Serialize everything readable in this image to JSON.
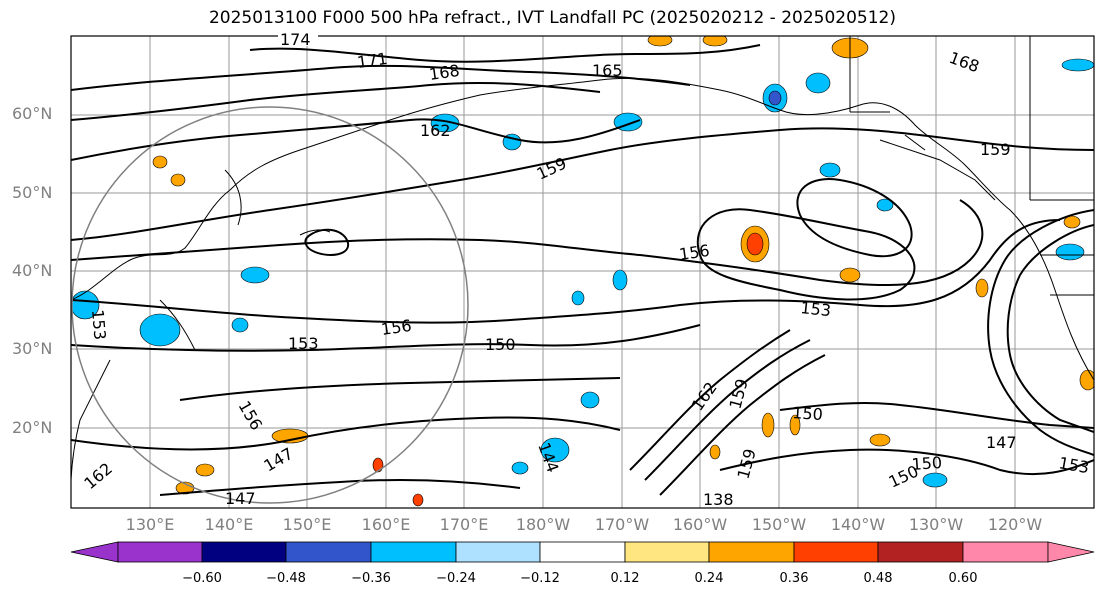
{
  "title": "2025013100 F000 500 hPa refract., IVT Landfall PC (2025020212 - 2025020512)",
  "map": {
    "lat_labels": [
      "60°N",
      "50°N",
      "40°N",
      "30°N",
      "20°N"
    ],
    "lon_labels": [
      "130°E",
      "140°E",
      "150°E",
      "160°E",
      "170°E",
      "180°W",
      "170°W",
      "160°W",
      "150°W",
      "140°W",
      "130°W",
      "120°W"
    ],
    "contour_labels": [
      "174",
      "171",
      "168",
      "165",
      "162",
      "159",
      "156",
      "153",
      "150",
      "147",
      "168",
      "159",
      "156",
      "153",
      "150",
      "147",
      "153",
      "150",
      "150",
      "147",
      "162",
      "159",
      "156",
      "153",
      "144",
      "138",
      "162",
      "159"
    ],
    "gridlines": true
  },
  "colorbar": {
    "colors": [
      "#9933cc",
      "#000080",
      "#3355cc",
      "#00bfff",
      "#aee0ff",
      "#ffffff",
      "#ffe680",
      "#ffa500",
      "#ff4000",
      "#b22222",
      "#ff88aa"
    ],
    "ticks": [
      "−0.60",
      "−0.48",
      "−0.36",
      "−0.24",
      "−0.12",
      "0.12",
      "0.24",
      "0.36",
      "0.48",
      "0.60"
    ]
  }
}
